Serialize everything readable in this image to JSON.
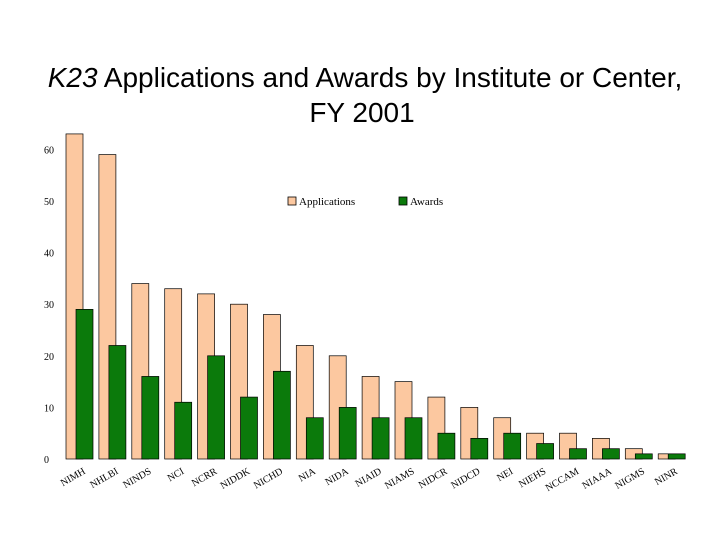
{
  "chart_data": {
    "type": "bar",
    "title": "K23 Applications and Awards by Institute or Center,",
    "subtitle": "FY 2001",
    "categories": [
      "NIMH",
      "NHLBI",
      "NINDS",
      "NCI",
      "NCRR",
      "NIDDK",
      "NICHD",
      "NIA",
      "NIDA",
      "NIAID",
      "NIAMS",
      "NIDCR",
      "NIDCD",
      "NEI",
      "NIEHS",
      "NCCAM",
      "NIAAA",
      "NIGMS",
      "NINR"
    ],
    "series": [
      {
        "name": "Applications",
        "color": "#fcc8a0",
        "values": [
          63,
          59,
          34,
          33,
          32,
          30,
          28,
          22,
          20,
          16,
          15,
          12,
          10,
          8,
          5,
          5,
          4,
          2,
          1
        ]
      },
      {
        "name": "Awards",
        "color": "#0b7a0b",
        "values": [
          29,
          22,
          16,
          11,
          20,
          12,
          17,
          8,
          10,
          8,
          8,
          5,
          4,
          5,
          3,
          2,
          2,
          1,
          1
        ]
      }
    ],
    "yticks": [
      "0",
      "10",
      "20",
      "30",
      "40",
      "50",
      "60"
    ],
    "ylim": [
      0,
      63
    ],
    "xlabel": "",
    "ylabel": "",
    "grid": false,
    "legend": "top-center"
  }
}
